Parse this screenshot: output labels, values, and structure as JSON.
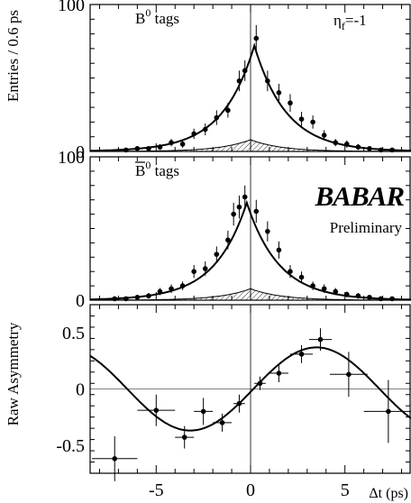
{
  "chart_data": [
    {
      "type": "scatter",
      "panel": "top",
      "label": "B",
      "label_sup": "0",
      "label_suffix": " tags",
      "eta_label": "η",
      "eta_sub": "f",
      "eta_value": "=-1",
      "ylabel": "Entries / 0.6 ps",
      "ylim": [
        0,
        100
      ],
      "yticks": [
        {
          "v": 0,
          "t": "0"
        },
        {
          "v": 100,
          "t": "100"
        }
      ],
      "xlim": [
        -8.5,
        8.5
      ],
      "points": [
        {
          "x": -6.6,
          "y": 1,
          "ey": 1
        },
        {
          "x": -6.0,
          "y": 2,
          "ey": 1.5
        },
        {
          "x": -5.4,
          "y": 2,
          "ey": 1.5
        },
        {
          "x": -4.8,
          "y": 3,
          "ey": 2
        },
        {
          "x": -4.2,
          "y": 6,
          "ey": 2.5
        },
        {
          "x": -3.6,
          "y": 5,
          "ey": 2.5
        },
        {
          "x": -3.0,
          "y": 12,
          "ey": 3.5
        },
        {
          "x": -2.4,
          "y": 15,
          "ey": 4
        },
        {
          "x": -1.8,
          "y": 23,
          "ey": 5
        },
        {
          "x": -1.2,
          "y": 28,
          "ey": 5
        },
        {
          "x": -0.6,
          "y": 48,
          "ey": 7
        },
        {
          "x": -0.3,
          "y": 55,
          "ey": 7
        },
        {
          "x": 0.3,
          "y": 77,
          "ey": 9
        },
        {
          "x": 0.9,
          "y": 48,
          "ey": 7
        },
        {
          "x": 1.5,
          "y": 40,
          "ey": 6
        },
        {
          "x": 2.1,
          "y": 33,
          "ey": 6
        },
        {
          "x": 2.7,
          "y": 22,
          "ey": 5
        },
        {
          "x": 3.3,
          "y": 20,
          "ey": 4.5
        },
        {
          "x": 3.9,
          "y": 11,
          "ey": 3.5
        },
        {
          "x": 4.5,
          "y": 6,
          "ey": 2.5
        },
        {
          "x": 5.1,
          "y": 5,
          "ey": 2.5
        },
        {
          "x": 5.7,
          "y": 3,
          "ey": 2
        },
        {
          "x": 6.3,
          "y": 2,
          "ey": 1.5
        },
        {
          "x": 6.9,
          "y": 1,
          "ey": 1
        },
        {
          "x": 7.5,
          "y": 1,
          "ey": 1
        }
      ],
      "fit": {
        "amp": 72,
        "mu": 0.2,
        "tau": 1.7
      },
      "background": {
        "amp": 8,
        "mu": 0,
        "tau": 1.6
      }
    },
    {
      "type": "scatter",
      "panel": "middle",
      "label": "B",
      "label_sup": "0",
      "label_suffix": " tags",
      "label_bar": true,
      "logo": "BABAR",
      "logo_sub": "Preliminary",
      "ylim": [
        0,
        100
      ],
      "yticks": [
        {
          "v": 0,
          "t": "0"
        },
        {
          "v": 100,
          "t": "100"
        }
      ],
      "xlim": [
        -8.5,
        8.5
      ],
      "points": [
        {
          "x": -7.2,
          "y": 1,
          "ey": 1
        },
        {
          "x": -6.6,
          "y": 1,
          "ey": 1
        },
        {
          "x": -6.0,
          "y": 2,
          "ey": 1.5
        },
        {
          "x": -5.4,
          "y": 3,
          "ey": 2
        },
        {
          "x": -4.8,
          "y": 6,
          "ey": 2.5
        },
        {
          "x": -4.2,
          "y": 8,
          "ey": 3
        },
        {
          "x": -3.6,
          "y": 10,
          "ey": 3
        },
        {
          "x": -3.0,
          "y": 20,
          "ey": 4.5
        },
        {
          "x": -2.4,
          "y": 22,
          "ey": 5
        },
        {
          "x": -1.8,
          "y": 32,
          "ey": 5.5
        },
        {
          "x": -1.2,
          "y": 42,
          "ey": 6.5
        },
        {
          "x": -0.9,
          "y": 60,
          "ey": 8
        },
        {
          "x": -0.6,
          "y": 65,
          "ey": 8
        },
        {
          "x": -0.3,
          "y": 72,
          "ey": 8
        },
        {
          "x": 0.3,
          "y": 62,
          "ey": 8
        },
        {
          "x": 0.9,
          "y": 48,
          "ey": 7
        },
        {
          "x": 1.5,
          "y": 35,
          "ey": 6
        },
        {
          "x": 2.1,
          "y": 20,
          "ey": 4.5
        },
        {
          "x": 2.7,
          "y": 16,
          "ey": 4
        },
        {
          "x": 3.3,
          "y": 10,
          "ey": 3
        },
        {
          "x": 3.9,
          "y": 8,
          "ey": 3
        },
        {
          "x": 4.5,
          "y": 6,
          "ey": 2.5
        },
        {
          "x": 5.1,
          "y": 4,
          "ey": 2
        },
        {
          "x": 5.7,
          "y": 3,
          "ey": 2
        },
        {
          "x": 6.3,
          "y": 2,
          "ey": 1.5
        },
        {
          "x": 6.9,
          "y": 1,
          "ey": 1
        },
        {
          "x": 7.5,
          "y": 1,
          "ey": 1
        }
      ],
      "fit": {
        "amp": 68,
        "mu": -0.2,
        "tau": 1.7
      },
      "background": {
        "amp": 8,
        "mu": 0,
        "tau": 1.6
      }
    },
    {
      "type": "scatter",
      "panel": "bottom",
      "ylabel": "Raw Asymmetry",
      "xlabel": "Δt (ps)",
      "ylim": [
        -0.75,
        0.75
      ],
      "yticks": [
        {
          "v": 0.5,
          "t": "0.5"
        },
        {
          "v": 0,
          "t": "0"
        },
        {
          "v": -0.5,
          "t": "-0.5"
        }
      ],
      "xticks": [
        {
          "v": -5,
          "t": "-5"
        },
        {
          "v": 0,
          "t": "0"
        },
        {
          "v": 5,
          "t": "5"
        }
      ],
      "xlim": [
        -8.5,
        8.5
      ],
      "points": [
        {
          "x": -7.2,
          "y": -0.62,
          "ex": 1.2,
          "ey": 0.2
        },
        {
          "x": -5.0,
          "y": -0.19,
          "ex": 1.0,
          "ey": 0.14
        },
        {
          "x": -3.5,
          "y": -0.43,
          "ex": 0.5,
          "ey": 0.1
        },
        {
          "x": -2.5,
          "y": -0.2,
          "ex": 0.5,
          "ey": 0.12
        },
        {
          "x": -1.5,
          "y": -0.3,
          "ex": 0.5,
          "ey": 0.08
        },
        {
          "x": -0.6,
          "y": -0.13,
          "ex": 0.3,
          "ey": 0.08
        },
        {
          "x": 0.5,
          "y": 0.05,
          "ex": 0.3,
          "ey": 0.06
        },
        {
          "x": 1.5,
          "y": 0.14,
          "ex": 0.5,
          "ey": 0.08
        },
        {
          "x": 2.7,
          "y": 0.31,
          "ex": 0.6,
          "ey": 0.08
        },
        {
          "x": 3.7,
          "y": 0.44,
          "ex": 0.6,
          "ey": 0.1
        },
        {
          "x": 5.2,
          "y": 0.13,
          "ex": 1.0,
          "ey": 0.2
        },
        {
          "x": 7.3,
          "y": -0.2,
          "ex": 1.3,
          "ey": 0.28
        }
      ],
      "fit": {
        "amp": 0.37,
        "omega": 0.47,
        "phase": -0.07
      }
    }
  ]
}
